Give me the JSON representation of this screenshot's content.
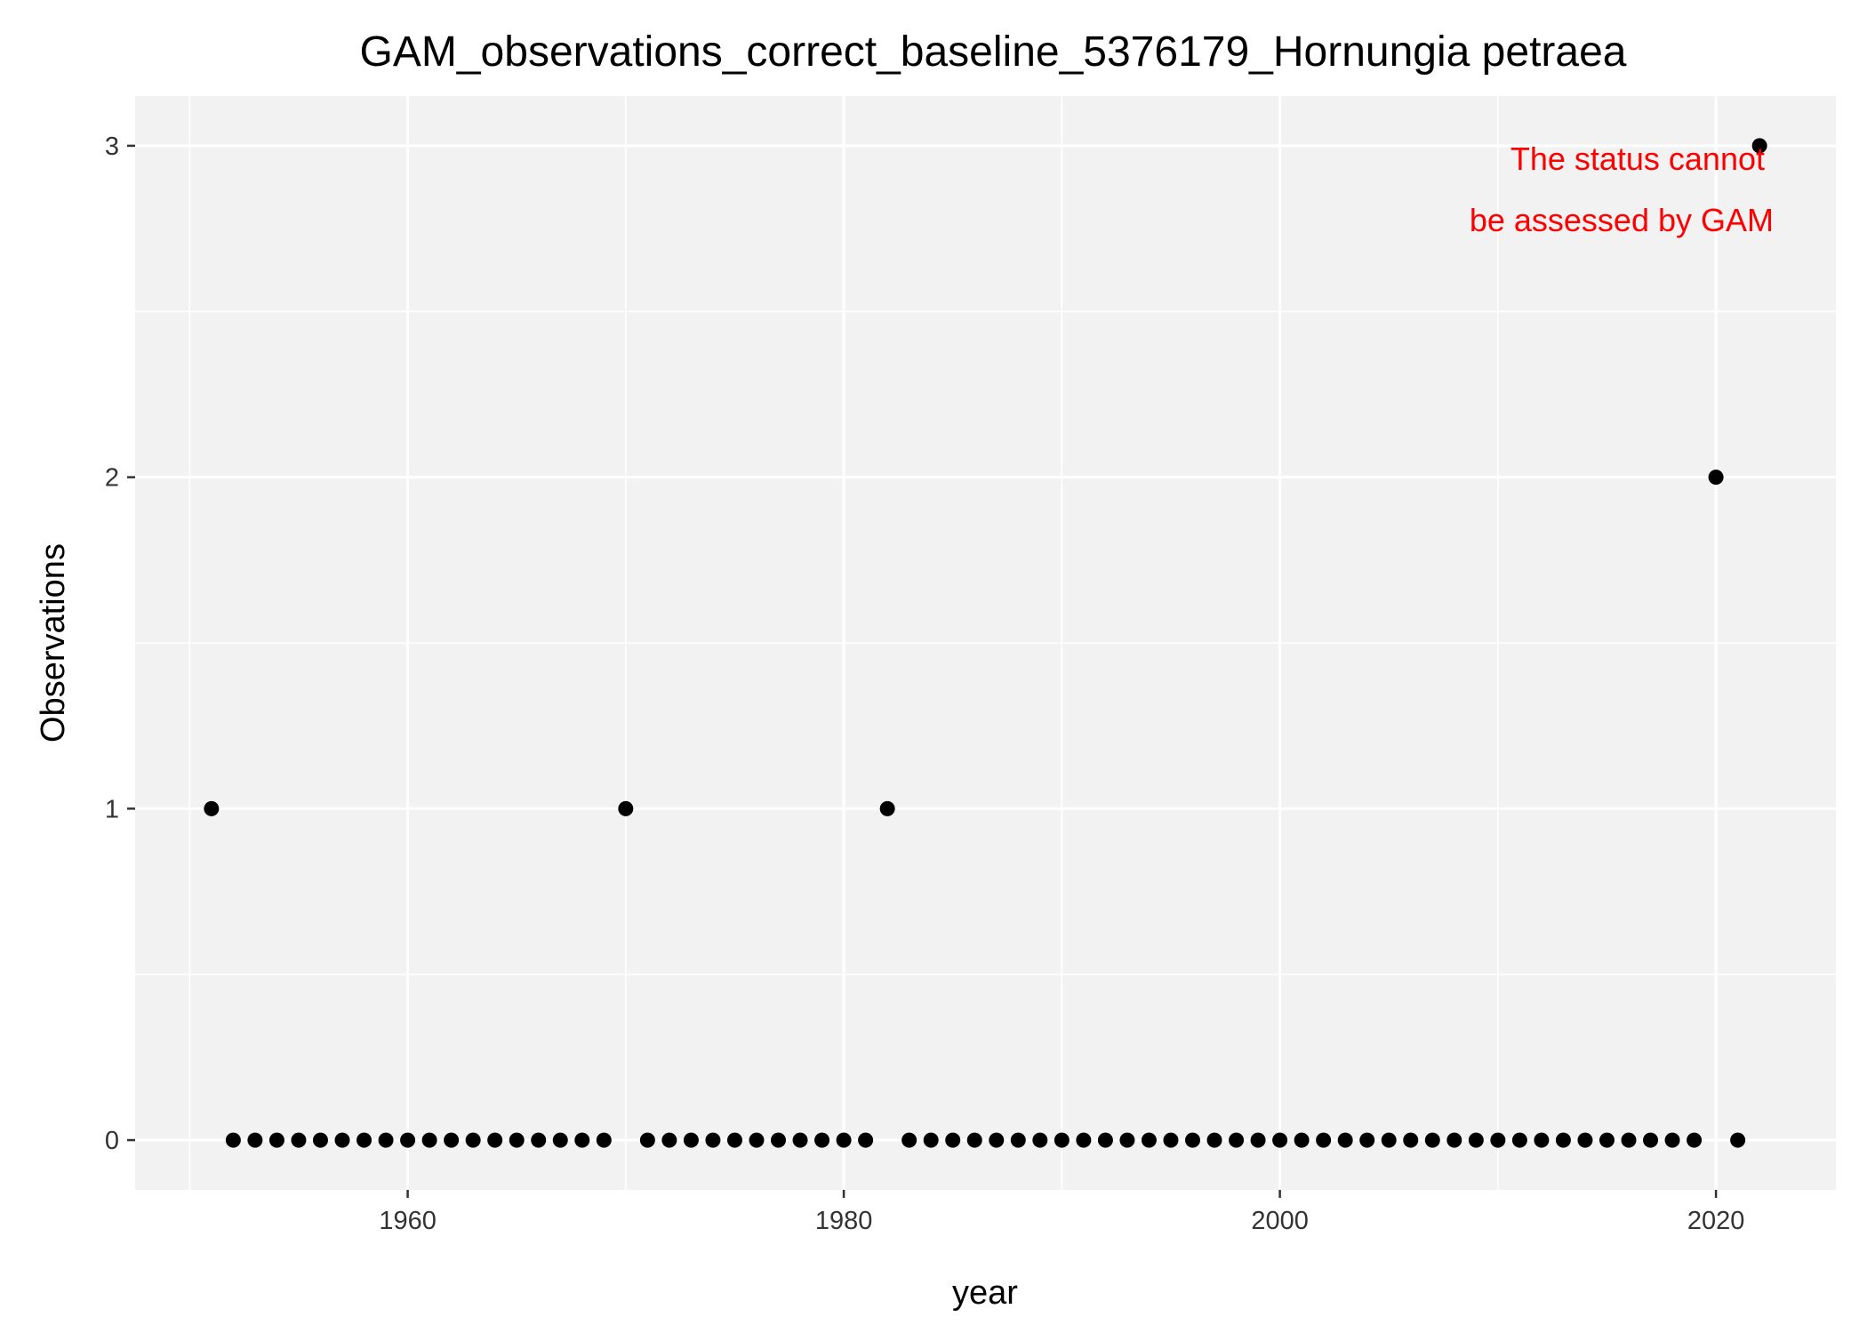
{
  "chart_data": {
    "type": "scatter",
    "title": "GAM_observations_correct_baseline_5376179_Hornungia petraea",
    "xlabel": "year",
    "ylabel": "Observations",
    "xlim": [
      1947.5,
      2025.5
    ],
    "ylim": [
      -0.15,
      3.15
    ],
    "x_ticks": [
      1960,
      1980,
      2000,
      2020
    ],
    "x_tick_labels": [
      "1960",
      "1980",
      "2000",
      "2020"
    ],
    "x_minor_ticks": [
      1950,
      1970,
      1990,
      2010
    ],
    "y_ticks": [
      0,
      1,
      2,
      3
    ],
    "y_tick_labels": [
      "0",
      "1",
      "2",
      "3"
    ],
    "y_minor_ticks": [
      0.5,
      1.5,
      2.5
    ],
    "grid": true,
    "legend": "none",
    "annotation": {
      "lines": [
        "The status cannot",
        "be assessed by GAM"
      ],
      "color": "#ff0000"
    },
    "colors": {
      "panel_background": "#f2f2f2",
      "grid": "#ffffff",
      "point": "#000000"
    },
    "points": [
      {
        "x": 1951,
        "y": 1
      },
      {
        "x": 1952,
        "y": 0
      },
      {
        "x": 1953,
        "y": 0
      },
      {
        "x": 1954,
        "y": 0
      },
      {
        "x": 1955,
        "y": 0
      },
      {
        "x": 1956,
        "y": 0
      },
      {
        "x": 1957,
        "y": 0
      },
      {
        "x": 1958,
        "y": 0
      },
      {
        "x": 1959,
        "y": 0
      },
      {
        "x": 1960,
        "y": 0
      },
      {
        "x": 1961,
        "y": 0
      },
      {
        "x": 1962,
        "y": 0
      },
      {
        "x": 1963,
        "y": 0
      },
      {
        "x": 1964,
        "y": 0
      },
      {
        "x": 1965,
        "y": 0
      },
      {
        "x": 1966,
        "y": 0
      },
      {
        "x": 1967,
        "y": 0
      },
      {
        "x": 1968,
        "y": 0
      },
      {
        "x": 1969,
        "y": 0
      },
      {
        "x": 1970,
        "y": 1
      },
      {
        "x": 1971,
        "y": 0
      },
      {
        "x": 1972,
        "y": 0
      },
      {
        "x": 1973,
        "y": 0
      },
      {
        "x": 1974,
        "y": 0
      },
      {
        "x": 1975,
        "y": 0
      },
      {
        "x": 1976,
        "y": 0
      },
      {
        "x": 1977,
        "y": 0
      },
      {
        "x": 1978,
        "y": 0
      },
      {
        "x": 1979,
        "y": 0
      },
      {
        "x": 1980,
        "y": 0
      },
      {
        "x": 1981,
        "y": 0
      },
      {
        "x": 1982,
        "y": 1
      },
      {
        "x": 1983,
        "y": 0
      },
      {
        "x": 1984,
        "y": 0
      },
      {
        "x": 1985,
        "y": 0
      },
      {
        "x": 1986,
        "y": 0
      },
      {
        "x": 1987,
        "y": 0
      },
      {
        "x": 1988,
        "y": 0
      },
      {
        "x": 1989,
        "y": 0
      },
      {
        "x": 1990,
        "y": 0
      },
      {
        "x": 1991,
        "y": 0
      },
      {
        "x": 1992,
        "y": 0
      },
      {
        "x": 1993,
        "y": 0
      },
      {
        "x": 1994,
        "y": 0
      },
      {
        "x": 1995,
        "y": 0
      },
      {
        "x": 1996,
        "y": 0
      },
      {
        "x": 1997,
        "y": 0
      },
      {
        "x": 1998,
        "y": 0
      },
      {
        "x": 1999,
        "y": 0
      },
      {
        "x": 2000,
        "y": 0
      },
      {
        "x": 2001,
        "y": 0
      },
      {
        "x": 2002,
        "y": 0
      },
      {
        "x": 2003,
        "y": 0
      },
      {
        "x": 2004,
        "y": 0
      },
      {
        "x": 2005,
        "y": 0
      },
      {
        "x": 2006,
        "y": 0
      },
      {
        "x": 2007,
        "y": 0
      },
      {
        "x": 2008,
        "y": 0
      },
      {
        "x": 2009,
        "y": 0
      },
      {
        "x": 2010,
        "y": 0
      },
      {
        "x": 2011,
        "y": 0
      },
      {
        "x": 2012,
        "y": 0
      },
      {
        "x": 2013,
        "y": 0
      },
      {
        "x": 2014,
        "y": 0
      },
      {
        "x": 2015,
        "y": 0
      },
      {
        "x": 2016,
        "y": 0
      },
      {
        "x": 2017,
        "y": 0
      },
      {
        "x": 2018,
        "y": 0
      },
      {
        "x": 2019,
        "y": 0
      },
      {
        "x": 2020,
        "y": 2
      },
      {
        "x": 2021,
        "y": 0
      },
      {
        "x": 2022,
        "y": 3
      }
    ]
  }
}
